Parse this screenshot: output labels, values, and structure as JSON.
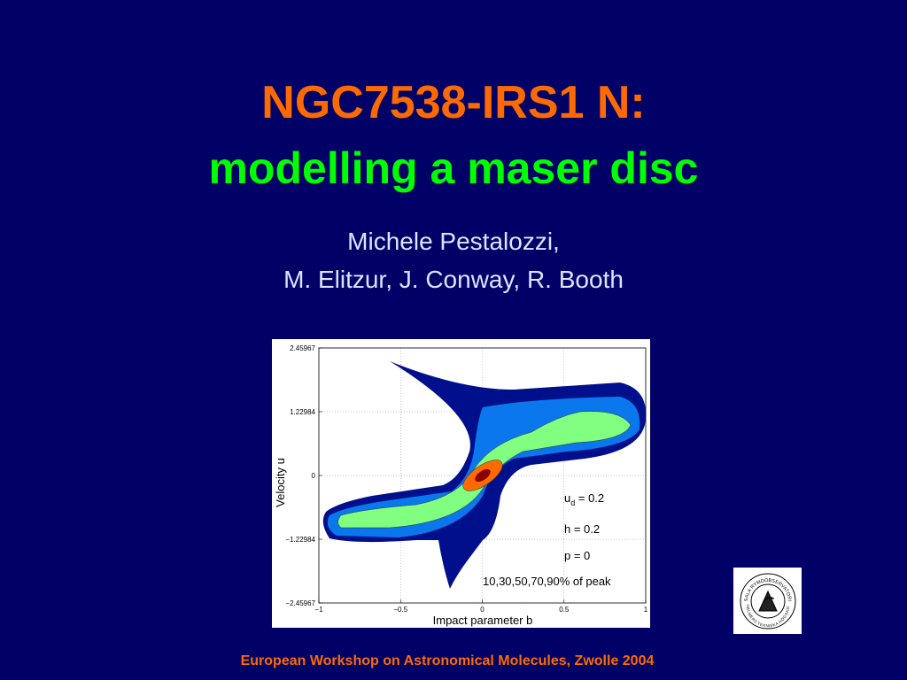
{
  "slide": {
    "title": "NGC7538-IRS1 N:",
    "subtitle": "modelling a maser disc",
    "authors": [
      "Michele Pestalozzi,",
      "M. Elitzur, J. Conway, R. Booth"
    ],
    "figure": {
      "x_label": "Impact parameter  b",
      "y_label": "Velocity  u",
      "xlim": [
        -1,
        1
      ],
      "ylim": [
        -2.45967,
        2.45967
      ],
      "xticks": [
        {
          "value": -1,
          "label": "−1"
        },
        {
          "value": -0.5,
          "label": "−0.5"
        },
        0,
        0.5,
        1
      ],
      "yticks": [
        {
          "value": -2.45967,
          "label": "−2.45967"
        },
        {
          "value": -1.22984,
          "label": "−1.22984"
        },
        0,
        1.22984,
        2.45967
      ],
      "annotations": {
        "ud": {
          "base": "u",
          "sub": "d",
          "rest": " = 0.2"
        },
        "h": "h = 0.2",
        "p": "p = 0",
        "levels": "10,30,50,70,90% of peak"
      }
    },
    "logo": {
      "top": "ONSALA RYMDOBSERVATORIUM",
      "bottom": "CHALMERS TEKNISKA HÖGSKOLA"
    },
    "footer": "European Workshop on Astronomical Molecules, Zwolle 2004"
  }
}
